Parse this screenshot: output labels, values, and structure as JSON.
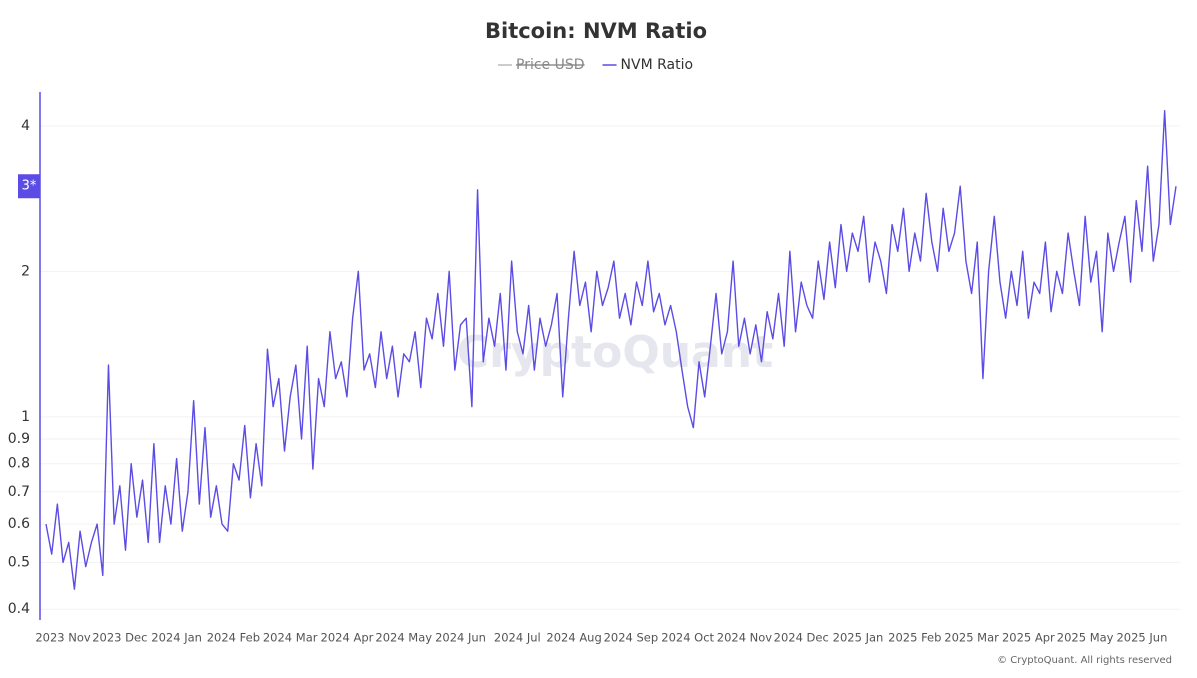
{
  "chart_data": {
    "type": "line",
    "title": "Bitcoin: NVM Ratio",
    "legend": [
      {
        "name": "Price USD",
        "color": "#999999",
        "hidden": true
      },
      {
        "name": "NVM Ratio",
        "color": "#5b4ce6",
        "hidden": false
      }
    ],
    "watermark": "CryptoQuant",
    "footer": "© CryptoQuant. All rights reserved",
    "log_scale": true,
    "grid": true,
    "ylim": [
      0.38,
      4.7
    ],
    "yticks": [
      0.4,
      0.5,
      0.6,
      0.7,
      0.8,
      0.9,
      1,
      2,
      4
    ],
    "y_marker": {
      "value": 3,
      "label": "3*"
    },
    "categories": [
      null,
      null,
      null,
      "2023 Nov",
      null,
      null,
      null,
      null,
      null,
      null,
      null,
      null,
      null,
      "2023 Dec",
      null,
      null,
      null,
      null,
      null,
      null,
      null,
      null,
      null,
      "2024 Jan",
      null,
      null,
      null,
      null,
      null,
      null,
      null,
      null,
      null,
      "2024 Feb",
      null,
      null,
      null,
      null,
      null,
      null,
      null,
      null,
      null,
      "2024 Mar",
      null,
      null,
      null,
      null,
      null,
      null,
      null,
      null,
      null,
      "2024 Apr",
      null,
      null,
      null,
      null,
      null,
      null,
      null,
      null,
      null,
      "2024 May",
      null,
      null,
      null,
      null,
      null,
      null,
      null,
      null,
      null,
      "2024 Jun",
      null,
      null,
      null,
      null,
      null,
      null,
      null,
      null,
      null,
      "2024 Jul",
      null,
      null,
      null,
      null,
      null,
      null,
      null,
      null,
      null,
      "2024 Aug",
      null,
      null,
      null,
      null,
      null,
      null,
      null,
      null,
      null,
      "2024 Sep",
      null,
      null,
      null,
      null,
      null,
      null,
      null,
      null,
      null,
      "2024 Oct",
      null,
      null,
      null,
      null,
      null,
      null,
      null,
      null,
      null,
      "2024 Nov",
      null,
      null,
      null,
      null,
      null,
      null,
      null,
      null,
      null,
      "2024 Dec",
      null,
      null,
      null,
      null,
      null,
      null,
      null,
      null,
      null,
      "2025 Jan",
      null,
      null,
      null,
      null,
      null,
      null,
      null,
      null,
      null,
      "2025 Feb",
      null,
      null,
      null,
      null,
      null,
      null,
      null,
      null,
      null,
      "2025 Mar",
      null,
      null,
      null,
      null,
      null,
      null,
      null,
      null,
      null,
      "2025 Apr",
      null,
      null,
      null,
      null,
      null,
      null,
      null,
      null,
      null,
      "2025 May",
      null,
      null,
      null,
      null,
      null,
      null,
      null,
      null,
      null,
      "2025 Jun",
      null,
      null,
      null,
      null,
      null,
      null
    ],
    "series": [
      {
        "name": "NVM Ratio",
        "color": "#5b4ce6",
        "values": [
          0.6,
          0.52,
          0.66,
          0.5,
          0.55,
          0.44,
          0.58,
          0.49,
          0.55,
          0.6,
          0.47,
          1.28,
          0.6,
          0.72,
          0.53,
          0.8,
          0.62,
          0.74,
          0.55,
          0.88,
          0.55,
          0.72,
          0.6,
          0.82,
          0.58,
          0.7,
          1.08,
          0.66,
          0.95,
          0.62,
          0.72,
          0.6,
          0.58,
          0.8,
          0.74,
          0.96,
          0.68,
          0.88,
          0.72,
          1.38,
          1.05,
          1.2,
          0.85,
          1.1,
          1.28,
          0.9,
          1.4,
          0.78,
          1.2,
          1.05,
          1.5,
          1.2,
          1.3,
          1.1,
          1.6,
          2.0,
          1.25,
          1.35,
          1.15,
          1.5,
          1.2,
          1.4,
          1.1,
          1.35,
          1.3,
          1.5,
          1.15,
          1.6,
          1.45,
          1.8,
          1.4,
          2.0,
          1.25,
          1.55,
          1.6,
          1.05,
          2.95,
          1.3,
          1.6,
          1.4,
          1.8,
          1.25,
          2.1,
          1.5,
          1.35,
          1.7,
          1.25,
          1.6,
          1.4,
          1.55,
          1.8,
          1.1,
          1.6,
          2.2,
          1.7,
          1.9,
          1.5,
          2.0,
          1.7,
          1.85,
          2.1,
          1.6,
          1.8,
          1.55,
          1.9,
          1.7,
          2.1,
          1.65,
          1.8,
          1.55,
          1.7,
          1.5,
          1.25,
          1.05,
          0.95,
          1.3,
          1.1,
          1.4,
          1.8,
          1.35,
          1.5,
          2.1,
          1.4,
          1.6,
          1.35,
          1.55,
          1.3,
          1.65,
          1.45,
          1.8,
          1.4,
          2.2,
          1.5,
          1.9,
          1.7,
          1.6,
          2.1,
          1.75,
          2.3,
          1.85,
          2.5,
          2.0,
          2.4,
          2.2,
          2.6,
          1.9,
          2.3,
          2.1,
          1.8,
          2.5,
          2.2,
          2.7,
          2.0,
          2.4,
          2.1,
          2.9,
          2.3,
          2.0,
          2.7,
          2.2,
          2.4,
          3.0,
          2.1,
          1.8,
          2.3,
          1.2,
          2.0,
          2.6,
          1.9,
          1.6,
          2.0,
          1.7,
          2.2,
          1.6,
          1.9,
          1.8,
          2.3,
          1.65,
          2.0,
          1.8,
          2.4,
          2.0,
          1.7,
          2.6,
          1.9,
          2.2,
          1.5,
          2.4,
          2.0,
          2.3,
          2.6,
          1.9,
          2.8,
          2.2,
          3.3,
          2.1,
          2.5,
          4.3,
          2.5,
          3.0
        ]
      }
    ]
  }
}
